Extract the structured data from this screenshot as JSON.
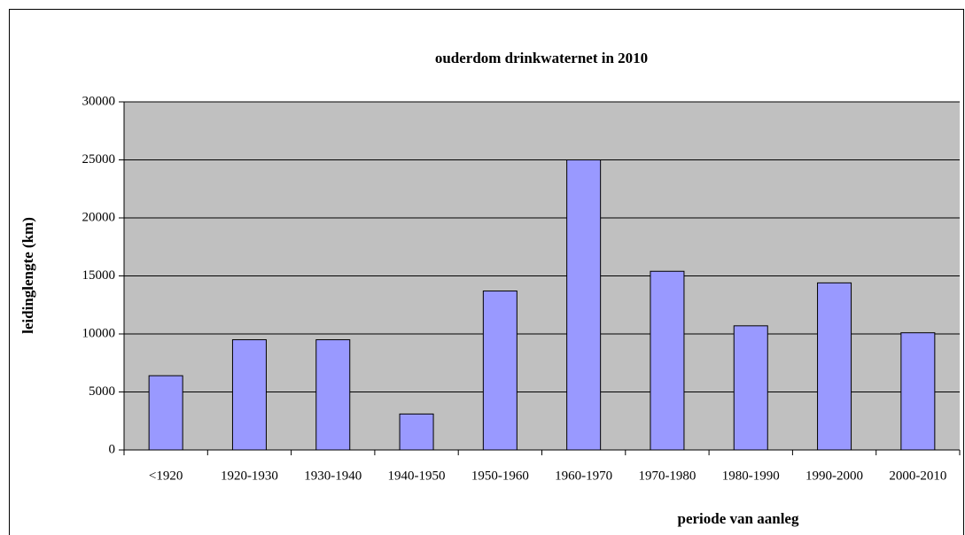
{
  "chart_data": {
    "type": "bar",
    "title": "ouderdom drinkwaternet in 2010",
    "y_label": "leidinglengte (km)",
    "x_label": "periode van aanleg",
    "categories": [
      "<1920",
      "1920-1930",
      "1930-1940",
      "1940-1950",
      "1950-1960",
      "1960-1970",
      "1970-1980",
      "1980-1990",
      "1990-2000",
      "2000-2010"
    ],
    "values": [
      6400,
      9500,
      9500,
      3100,
      13700,
      25000,
      15400,
      10700,
      14400,
      10100
    ],
    "color": "#9999ff",
    "ylim": [
      0,
      30000
    ],
    "yticks": [
      0,
      5000,
      10000,
      15000,
      20000,
      25000,
      30000
    ],
    "grid": true
  }
}
